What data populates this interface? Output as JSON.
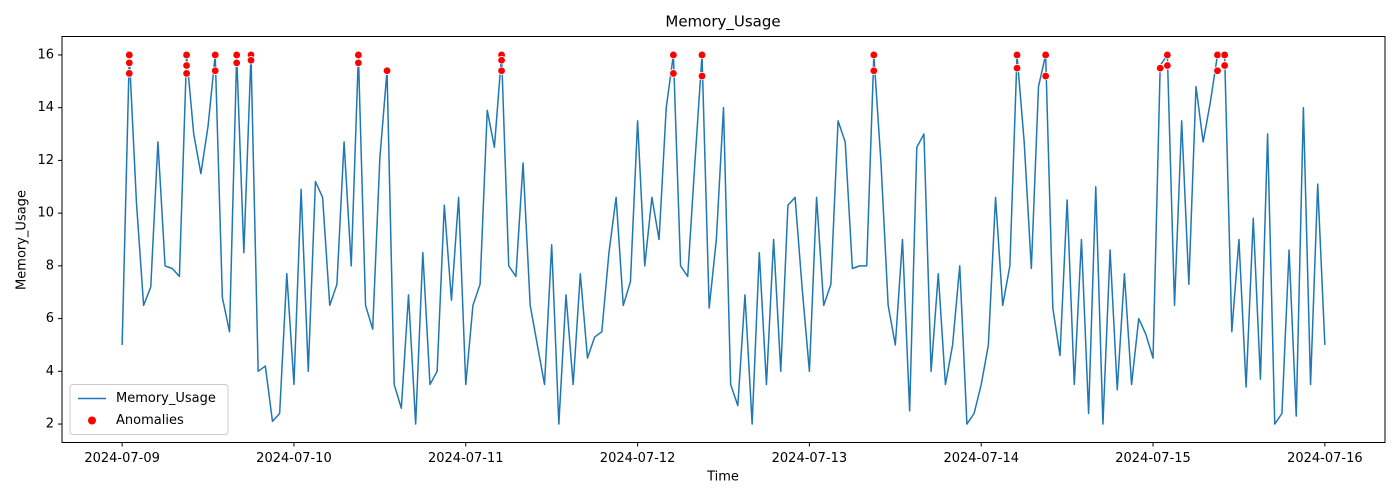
{
  "chart_data": {
    "type": "line",
    "title": "Memory_Usage",
    "x_label": "Time",
    "y_label": "Memory_Usage",
    "xlim": [
      "2024-07-08T15:36",
      "2024-07-16T08:24"
    ],
    "xticks": [
      "2024-07-09",
      "2024-07-10",
      "2024-07-11",
      "2024-07-12",
      "2024-07-13",
      "2024-07-14",
      "2024-07-15",
      "2024-07-16"
    ],
    "ylim": [
      1.3,
      16.7
    ],
    "yticks": [
      2,
      4,
      6,
      8,
      10,
      12,
      14,
      16
    ],
    "grid": false,
    "legend": "lower left",
    "series": [
      {
        "name": "Memory_Usage",
        "type": "line",
        "color": "#1f77b4",
        "x": [
          "2024-07-09T00:00",
          "2024-07-09T01:00",
          "2024-07-09T02:00",
          "2024-07-09T03:00",
          "2024-07-09T04:00",
          "2024-07-09T05:00",
          "2024-07-09T06:00",
          "2024-07-09T07:00",
          "2024-07-09T08:00",
          "2024-07-09T09:00",
          "2024-07-09T10:00",
          "2024-07-09T11:00",
          "2024-07-09T12:00",
          "2024-07-09T13:00",
          "2024-07-09T14:00",
          "2024-07-09T15:00",
          "2024-07-09T16:00",
          "2024-07-09T17:00",
          "2024-07-09T18:00",
          "2024-07-09T19:00",
          "2024-07-09T20:00",
          "2024-07-09T21:00",
          "2024-07-09T22:00",
          "2024-07-09T23:00",
          "2024-07-10T00:00",
          "2024-07-10T01:00",
          "2024-07-10T02:00",
          "2024-07-10T03:00",
          "2024-07-10T04:00",
          "2024-07-10T05:00",
          "2024-07-10T06:00",
          "2024-07-10T07:00",
          "2024-07-10T08:00",
          "2024-07-10T09:00",
          "2024-07-10T10:00",
          "2024-07-10T11:00",
          "2024-07-10T12:00",
          "2024-07-10T13:00",
          "2024-07-10T14:00",
          "2024-07-10T15:00",
          "2024-07-10T16:00",
          "2024-07-10T17:00",
          "2024-07-10T18:00",
          "2024-07-10T19:00",
          "2024-07-10T20:00",
          "2024-07-10T21:00",
          "2024-07-10T22:00",
          "2024-07-10T23:00",
          "2024-07-11T00:00",
          "2024-07-11T01:00",
          "2024-07-11T02:00",
          "2024-07-11T03:00",
          "2024-07-11T04:00",
          "2024-07-11T05:00",
          "2024-07-11T06:00",
          "2024-07-11T07:00",
          "2024-07-11T08:00",
          "2024-07-11T09:00",
          "2024-07-11T10:00",
          "2024-07-11T11:00",
          "2024-07-11T12:00",
          "2024-07-11T13:00",
          "2024-07-11T14:00",
          "2024-07-11T15:00",
          "2024-07-11T16:00",
          "2024-07-11T17:00",
          "2024-07-11T18:00",
          "2024-07-11T19:00",
          "2024-07-11T20:00",
          "2024-07-11T21:00",
          "2024-07-11T22:00",
          "2024-07-11T23:00",
          "2024-07-12T00:00",
          "2024-07-12T01:00",
          "2024-07-12T02:00",
          "2024-07-12T03:00",
          "2024-07-12T04:00",
          "2024-07-12T05:00",
          "2024-07-12T06:00",
          "2024-07-12T07:00",
          "2024-07-12T08:00",
          "2024-07-12T09:00",
          "2024-07-12T10:00",
          "2024-07-12T11:00",
          "2024-07-12T12:00",
          "2024-07-12T13:00",
          "2024-07-12T14:00",
          "2024-07-12T15:00",
          "2024-07-12T16:00",
          "2024-07-12T17:00",
          "2024-07-12T18:00",
          "2024-07-12T19:00",
          "2024-07-12T20:00",
          "2024-07-12T21:00",
          "2024-07-12T22:00",
          "2024-07-12T23:00",
          "2024-07-13T00:00",
          "2024-07-13T01:00",
          "2024-07-13T02:00",
          "2024-07-13T03:00",
          "2024-07-13T04:00",
          "2024-07-13T05:00",
          "2024-07-13T06:00",
          "2024-07-13T07:00",
          "2024-07-13T08:00",
          "2024-07-13T09:00",
          "2024-07-13T10:00",
          "2024-07-13T11:00",
          "2024-07-13T12:00",
          "2024-07-13T13:00",
          "2024-07-13T14:00",
          "2024-07-13T15:00",
          "2024-07-13T16:00",
          "2024-07-13T17:00",
          "2024-07-13T18:00",
          "2024-07-13T19:00",
          "2024-07-13T20:00",
          "2024-07-13T21:00",
          "2024-07-13T22:00",
          "2024-07-13T23:00",
          "2024-07-14T00:00",
          "2024-07-14T01:00",
          "2024-07-14T02:00",
          "2024-07-14T03:00",
          "2024-07-14T04:00",
          "2024-07-14T05:00",
          "2024-07-14T06:00",
          "2024-07-14T07:00",
          "2024-07-14T08:00",
          "2024-07-14T09:00",
          "2024-07-14T10:00",
          "2024-07-14T11:00",
          "2024-07-14T12:00",
          "2024-07-14T13:00",
          "2024-07-14T14:00",
          "2024-07-14T15:00",
          "2024-07-14T16:00",
          "2024-07-14T17:00",
          "2024-07-14T18:00",
          "2024-07-14T19:00",
          "2024-07-14T20:00",
          "2024-07-14T21:00",
          "2024-07-14T22:00",
          "2024-07-14T23:00",
          "2024-07-15T00:00",
          "2024-07-15T01:00",
          "2024-07-15T02:00",
          "2024-07-15T03:00",
          "2024-07-15T04:00",
          "2024-07-15T05:00",
          "2024-07-15T06:00",
          "2024-07-15T07:00",
          "2024-07-15T08:00",
          "2024-07-15T09:00",
          "2024-07-15T10:00",
          "2024-07-15T11:00",
          "2024-07-15T12:00",
          "2024-07-15T13:00",
          "2024-07-15T14:00",
          "2024-07-15T15:00",
          "2024-07-15T16:00",
          "2024-07-15T17:00",
          "2024-07-15T18:00",
          "2024-07-15T19:00",
          "2024-07-15T20:00",
          "2024-07-15T21:00",
          "2024-07-15T22:00",
          "2024-07-15T23:00",
          "2024-07-16T00:00"
        ],
        "values": [
          5.0,
          16.0,
          10.4,
          6.5,
          7.2,
          12.7,
          8.0,
          7.9,
          7.6,
          16.0,
          13.0,
          11.5,
          13.3,
          16.0,
          6.8,
          5.5,
          16.0,
          8.5,
          16.0,
          4.0,
          4.2,
          2.1,
          2.4,
          7.7,
          3.5,
          10.9,
          4.0,
          11.2,
          10.6,
          6.5,
          7.3,
          12.7,
          8.0,
          16.0,
          6.5,
          5.6,
          12.1,
          15.4,
          3.5,
          2.6,
          6.9,
          2.0,
          8.5,
          3.5,
          4.0,
          10.3,
          6.7,
          10.6,
          3.5,
          6.5,
          7.3,
          13.9,
          12.5,
          16.0,
          8.0,
          7.6,
          11.9,
          6.5,
          5.0,
          3.5,
          8.8,
          2.0,
          6.9,
          3.5,
          7.7,
          4.5,
          5.3,
          5.5,
          8.5,
          10.6,
          6.5,
          7.4,
          13.5,
          8.0,
          10.6,
          9.0,
          14.0,
          16.0,
          8.0,
          7.6,
          11.9,
          16.0,
          6.4,
          9.0,
          14.0,
          3.5,
          2.7,
          6.9,
          2.0,
          8.5,
          3.5,
          9.0,
          4.0,
          10.3,
          10.6,
          7.1,
          4.0,
          10.6,
          6.5,
          7.3,
          13.5,
          12.7,
          7.9,
          8.0,
          8.0,
          16.0,
          11.9,
          6.5,
          5.0,
          9.0,
          2.5,
          12.5,
          13.0,
          4.0,
          7.7,
          3.5,
          5.0,
          8.0,
          2.0,
          2.4,
          3.5,
          5.0,
          10.6,
          6.5,
          8.0,
          16.0,
          12.7,
          7.9,
          14.8,
          16.0,
          6.4,
          4.6,
          10.5,
          3.5,
          9.0,
          2.4,
          11.0,
          2.0,
          8.6,
          3.3,
          7.7,
          3.5,
          6.0,
          5.4,
          4.5,
          15.6,
          16.0,
          6.5,
          13.5,
          7.3,
          14.8,
          12.7,
          14.2,
          16.0,
          16.0,
          5.5,
          9.0,
          3.4,
          9.8,
          3.7,
          13.0,
          2.0,
          2.4,
          8.6,
          2.3,
          14.0,
          3.5,
          11.1,
          5.0
        ]
      },
      {
        "name": "Anomalies",
        "type": "scatter",
        "color": "#ff0000",
        "x": [
          "2024-07-09T01:00",
          "2024-07-09T01:00",
          "2024-07-09T01:00",
          "2024-07-09T09:00",
          "2024-07-09T09:00",
          "2024-07-09T09:00",
          "2024-07-09T13:00",
          "2024-07-09T13:00",
          "2024-07-09T16:00",
          "2024-07-09T16:00",
          "2024-07-09T18:00",
          "2024-07-09T18:00",
          "2024-07-10T09:00",
          "2024-07-10T09:00",
          "2024-07-10T13:00",
          "2024-07-11T05:00",
          "2024-07-11T05:00",
          "2024-07-11T05:00",
          "2024-07-12T05:00",
          "2024-07-12T05:00",
          "2024-07-12T09:00",
          "2024-07-12T09:00",
          "2024-07-13T09:00",
          "2024-07-13T09:00",
          "2024-07-14T05:00",
          "2024-07-14T05:00",
          "2024-07-14T09:00",
          "2024-07-14T09:00",
          "2024-07-15T01:00",
          "2024-07-15T02:00",
          "2024-07-15T02:00",
          "2024-07-15T09:00",
          "2024-07-15T09:00",
          "2024-07-15T10:00",
          "2024-07-15T10:00"
        ],
        "values": [
          16.0,
          15.7,
          15.3,
          16.0,
          15.6,
          15.3,
          16.0,
          15.4,
          16.0,
          15.7,
          16.0,
          15.8,
          16.0,
          15.7,
          15.4,
          16.0,
          15.8,
          15.4,
          16.0,
          15.3,
          16.0,
          15.2,
          16.0,
          15.4,
          16.0,
          15.5,
          16.0,
          15.2,
          15.5,
          16.0,
          15.6,
          16.0,
          15.4,
          16.0,
          15.6
        ]
      }
    ]
  }
}
